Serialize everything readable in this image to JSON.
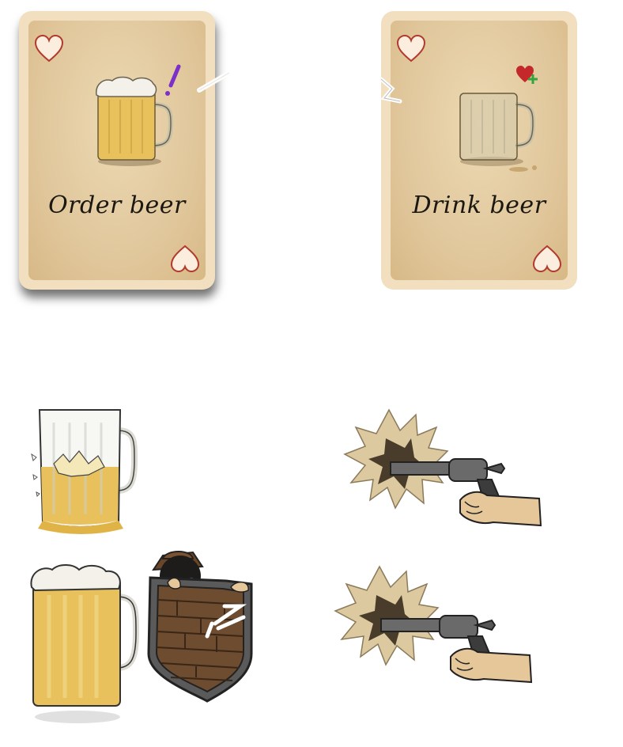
{
  "cards": [
    {
      "id": "order",
      "title": "Order beer",
      "suit": "heart-icon",
      "badge": "exclamation-icon",
      "selected": true
    },
    {
      "id": "drink",
      "title": "Drink beer",
      "suit": "heart-icon",
      "badge": "heart-plus-icon",
      "selected": false
    }
  ],
  "colors": {
    "card_border": "#f1dfc0",
    "card_face": "#dfc498",
    "heart_outline": "#b23a2b",
    "heart_fill": "#fbeede",
    "beer": "#e8c15c",
    "foam": "#f3f1ea",
    "badge_purple": "#7c2fc9",
    "badge_red": "#c5282a",
    "badge_green": "#34a43c"
  },
  "sprites": [
    "spilled-beer-mug",
    "full-beer-mug",
    "bandit-behind-shield",
    "revolver-firing",
    "revolver-firing"
  ]
}
